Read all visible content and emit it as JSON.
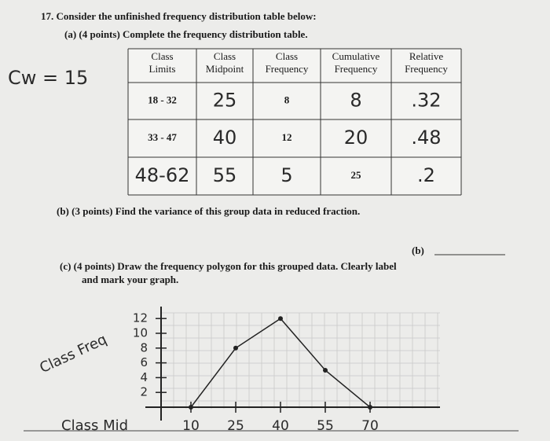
{
  "question": "17. Consider the unfinished frequency distribution table below:",
  "part_a": "(a) (4 points) Complete the frequency distribution table.",
  "annotation": "Cw = 15",
  "table": {
    "headers": [
      [
        "Class",
        "Limits"
      ],
      [
        "Class",
        "Midpoint"
      ],
      [
        "Class",
        "Frequency"
      ],
      [
        "Cumulative",
        "Frequency"
      ],
      [
        "Relative",
        "Frequency"
      ]
    ],
    "rows": [
      [
        "18 - 32",
        "25",
        "8",
        "8",
        ".32"
      ],
      [
        "33 - 47",
        "40",
        "12",
        "20",
        ".48"
      ],
      [
        "48-62",
        "55",
        "5",
        "25",
        ".2"
      ]
    ]
  },
  "part_b": "(b) (3 points) Find the variance of this group data in reduced fraction.",
  "answer_label": "(b)",
  "part_c": [
    "(c) (4 points) Draw the frequency polygon for this grouped data. Clearly label",
    "and mark your graph."
  ],
  "graph": {
    "y_label": "Class Freq",
    "x_label": "Class Mid",
    "x": [
      10,
      25,
      40,
      55,
      70
    ],
    "values": [
      0,
      8,
      12,
      5,
      0
    ],
    "xticks": [
      10,
      25,
      40,
      55,
      70
    ],
    "yticks": [
      2,
      4,
      6,
      8,
      10,
      12
    ]
  }
}
